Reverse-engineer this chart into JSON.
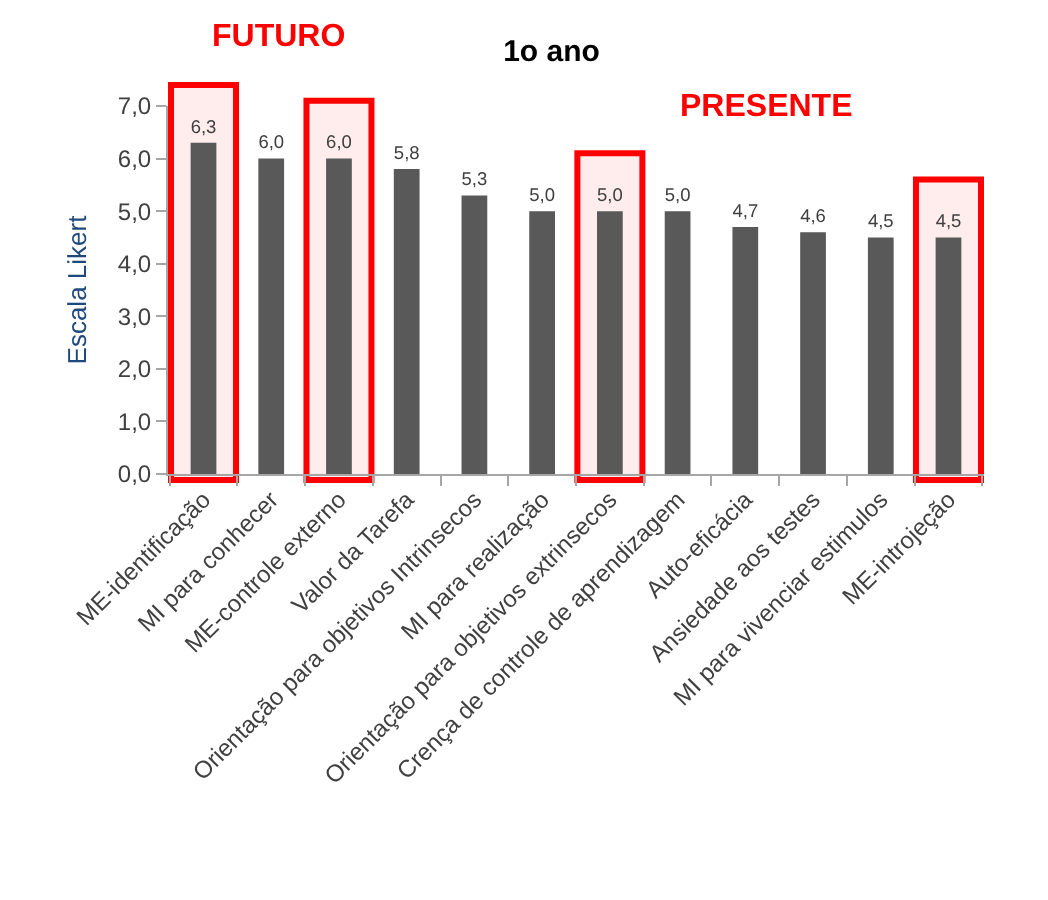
{
  "chart_data": {
    "type": "bar",
    "title": "1o ano",
    "ylabel": "Escala Likert",
    "categories": [
      "ME-identificação",
      "MI para conhecer",
      "ME-controle externo",
      "Valor da Tarefa",
      "Orientação para objetivos Intrinsecos",
      "MI para realização",
      "Orientação para objetivos extrinsecos",
      "Crença de controle de aprendizagem",
      "Auto-eficácia",
      "Ansiedade aos testes",
      "MI para vivenciar estimulos",
      "ME-introjeção"
    ],
    "values": [
      6.3,
      6.0,
      6.0,
      5.8,
      5.3,
      5.0,
      5.0,
      5.0,
      4.7,
      4.6,
      4.5,
      4.5
    ],
    "color": "#595959",
    "value_labels": [
      "6,3",
      "6,0",
      "6,0",
      "5,8",
      "5,3",
      "5,0",
      "5,0",
      "5,0",
      "4,7",
      "4,6",
      "4,5",
      "4,5"
    ],
    "ylim": [
      0,
      7
    ],
    "yticks": [
      {
        "value": 0,
        "label": "0,0"
      },
      {
        "value": 1,
        "label": "1,0"
      },
      {
        "value": 2,
        "label": "2,0"
      },
      {
        "value": 3,
        "label": "3,0"
      },
      {
        "value": 4,
        "label": "4,0"
      },
      {
        "value": 5,
        "label": "5,0"
      },
      {
        "value": 6,
        "label": "6,0"
      },
      {
        "value": 7,
        "label": "7,0"
      }
    ],
    "annotations": [
      "FUTURO",
      "PRESENTE"
    ],
    "bands": [
      {
        "axis": "x",
        "from": "ME-identificação",
        "to": "ME-identificação",
        "color": "#ff0000"
      },
      {
        "axis": "x",
        "from": "ME-controle externo",
        "to": "ME-controle externo",
        "color": "#ff0000"
      },
      {
        "axis": "x",
        "from": "Orientação para objetivos extrinsecos",
        "to": "Orientação para objetivos extrinsecos",
        "color": "#ff0000"
      },
      {
        "axis": "x",
        "from": "ME-introjeção",
        "to": "ME-introjeção",
        "color": "#ff0000"
      }
    ]
  }
}
